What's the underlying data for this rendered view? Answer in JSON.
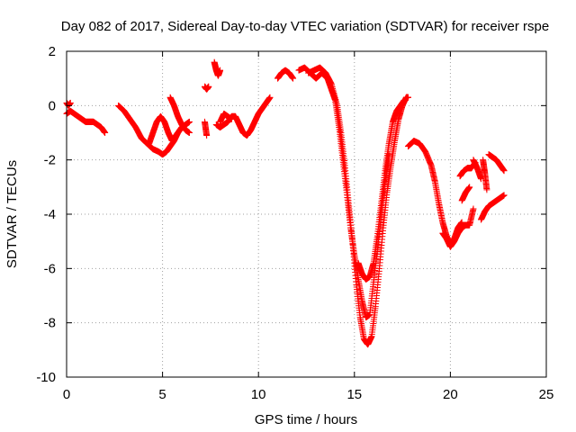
{
  "chart_data": {
    "type": "scatter",
    "title": "Day 082 of 2017, Sidereal Day-to-day VTEC variation (SDTVAR) for receiver rspe",
    "xlabel": "GPS time / hours",
    "ylabel": "SDTVAR / TECUs",
    "xlim": [
      0,
      25
    ],
    "ylim": [
      -10,
      2
    ],
    "xticks": [
      0,
      5,
      10,
      15,
      20,
      25
    ],
    "yticks": [
      -10,
      -8,
      -6,
      -4,
      -2,
      0,
      2
    ],
    "xtick_labels": [
      "0",
      "5",
      "10",
      "15",
      "20",
      "25"
    ],
    "ytick_labels": [
      "-10",
      "-8",
      "-6",
      "-4",
      "-2",
      "0",
      "2"
    ],
    "grid": true,
    "marker": "+",
    "color": "#ff0000",
    "series": [
      {
        "x": [
          0.0,
          0.2,
          0.4,
          0.6,
          0.8,
          1.0,
          1.2,
          1.4,
          1.6,
          1.8,
          2.0
        ],
        "y": [
          -0.3,
          -0.2,
          -0.3,
          -0.4,
          -0.5,
          -0.6,
          -0.6,
          -0.6,
          -0.7,
          -0.8,
          -1.0
        ]
      },
      {
        "x": [
          0.0,
          0.1,
          0.2
        ],
        "y": [
          0.1,
          0.0,
          0.1
        ]
      },
      {
        "x": [
          2.7,
          3.0,
          3.3,
          3.6,
          3.9,
          4.2,
          4.5,
          4.8,
          5.0,
          5.2,
          5.4,
          5.6,
          5.8
        ],
        "y": [
          0.0,
          -0.2,
          -0.5,
          -0.8,
          -1.2,
          -1.4,
          -1.6,
          -1.7,
          -1.8,
          -1.7,
          -1.5,
          -1.3,
          -1.0
        ]
      },
      {
        "x": [
          4.3,
          4.5,
          4.7,
          4.9,
          5.1,
          5.3,
          5.5
        ],
        "y": [
          -1.4,
          -1.0,
          -0.6,
          -0.4,
          -0.6,
          -1.0,
          -1.3
        ]
      },
      {
        "x": [
          5.4,
          5.6,
          5.8,
          6.0,
          6.2,
          6.4
        ],
        "y": [
          0.3,
          0.0,
          -0.4,
          -0.7,
          -0.9,
          -1.0
        ]
      },
      {
        "x": [
          5.6,
          5.8,
          6.0,
          6.2,
          6.4
        ],
        "y": [
          -1.2,
          -1.0,
          -0.8,
          -0.7,
          -0.6
        ]
      },
      {
        "x": [
          7.2,
          7.3,
          7.4
        ],
        "y": [
          0.7,
          0.6,
          0.7
        ]
      },
      {
        "x": [
          7.2,
          7.3
        ],
        "y": [
          -0.6,
          -1.1
        ]
      },
      {
        "x": [
          7.7,
          7.8,
          7.9,
          8.0
        ],
        "y": [
          1.6,
          1.3,
          1.1,
          1.3
        ]
      },
      {
        "x": [
          7.8,
          8.0,
          8.2,
          8.4,
          8.6,
          8.8,
          9.0,
          9.2,
          9.4,
          9.6,
          9.8,
          10.0,
          10.2,
          10.4,
          10.6
        ],
        "y": [
          -0.7,
          -0.8,
          -0.7,
          -0.6,
          -0.4,
          -0.4,
          -0.7,
          -1.0,
          -1.1,
          -0.9,
          -0.6,
          -0.3,
          -0.1,
          0.1,
          0.3
        ]
      },
      {
        "x": [
          8.0,
          8.2,
          8.4,
          8.6
        ],
        "y": [
          -0.6,
          -0.3,
          -0.4,
          -0.5
        ]
      },
      {
        "x": [
          11.0,
          11.2,
          11.4,
          11.6,
          11.8
        ],
        "y": [
          1.0,
          1.2,
          1.3,
          1.2,
          1.0
        ]
      },
      {
        "x": [
          12.1,
          12.4,
          12.7,
          13.0,
          13.3,
          13.6,
          13.8,
          14.0,
          14.2,
          14.4,
          14.6,
          14.8,
          15.0,
          15.2,
          15.4,
          15.6,
          15.8,
          16.0,
          16.2,
          16.4,
          16.6,
          16.8
        ],
        "y": [
          1.3,
          1.4,
          1.2,
          1.0,
          1.2,
          1.0,
          0.6,
          0.2,
          -0.8,
          -2.0,
          -3.2,
          -4.5,
          -5.5,
          -6.4,
          -7.2,
          -7.8,
          -7.7,
          -6.5,
          -5.3,
          -4.0,
          -2.8,
          -1.8
        ]
      },
      {
        "x": [
          12.6,
          12.9,
          13.2,
          13.5,
          13.8,
          14.1,
          14.3,
          14.5,
          14.7,
          14.9,
          15.1,
          15.3,
          15.5,
          15.7,
          15.9,
          16.1,
          16.3,
          16.5,
          16.7,
          16.9,
          17.1,
          17.3,
          17.5,
          17.7,
          17.8
        ],
        "y": [
          1.2,
          1.3,
          1.4,
          1.2,
          0.8,
          0.0,
          -1.0,
          -2.2,
          -3.6,
          -5.0,
          -6.6,
          -7.8,
          -8.6,
          -8.8,
          -8.5,
          -7.4,
          -6.0,
          -4.5,
          -3.2,
          -2.2,
          -1.3,
          -0.5,
          0.0,
          0.3,
          0.3
        ]
      },
      {
        "x": [
          15.2,
          15.4,
          15.6,
          15.8,
          16.0,
          16.2,
          16.4,
          16.6,
          16.8,
          17.0,
          17.2,
          17.4,
          17.6
        ],
        "y": [
          -5.8,
          -6.2,
          -6.4,
          -6.3,
          -5.8,
          -4.8,
          -3.6,
          -2.4,
          -1.4,
          -0.6,
          -0.2,
          0.0,
          0.2
        ]
      },
      {
        "x": [
          17.8,
          18.1,
          18.4,
          18.7,
          19.0,
          19.2,
          19.4,
          19.6,
          19.8,
          20.0,
          20.2,
          20.4,
          20.6
        ],
        "y": [
          -1.5,
          -1.3,
          -1.4,
          -1.7,
          -2.2,
          -2.8,
          -3.6,
          -4.3,
          -4.8,
          -5.1,
          -4.9,
          -4.5,
          -4.3
        ]
      },
      {
        "x": [
          19.6,
          19.8,
          20.0,
          20.2,
          20.4,
          20.6,
          20.8,
          21.0,
          21.2
        ],
        "y": [
          -4.7,
          -4.9,
          -5.2,
          -5.0,
          -4.7,
          -4.5,
          -4.4,
          -4.4,
          -3.8
        ]
      },
      {
        "x": [
          20.5,
          20.7,
          20.9,
          21.1,
          21.3
        ],
        "y": [
          -2.6,
          -2.4,
          -2.3,
          -2.3,
          -2.1
        ]
      },
      {
        "x": [
          20.6,
          20.8,
          21.0
        ],
        "y": [
          -3.5,
          -3.2,
          -3.0
        ]
      },
      {
        "x": [
          21.2,
          21.4,
          21.6
        ],
        "y": [
          -2.0,
          -2.3,
          -2.7
        ]
      },
      {
        "x": [
          21.7,
          21.8,
          21.9
        ],
        "y": [
          -2.0,
          -2.5,
          -3.1
        ]
      },
      {
        "x": [
          21.6,
          21.8,
          22.0,
          22.2,
          22.4,
          22.6,
          22.8
        ],
        "y": [
          -4.2,
          -3.9,
          -3.7,
          -3.6,
          -3.5,
          -3.4,
          -3.3
        ]
      },
      {
        "x": [
          22.0,
          22.2,
          22.4,
          22.6,
          22.8
        ],
        "y": [
          -1.8,
          -1.9,
          -2.0,
          -2.2,
          -2.4
        ]
      }
    ]
  }
}
